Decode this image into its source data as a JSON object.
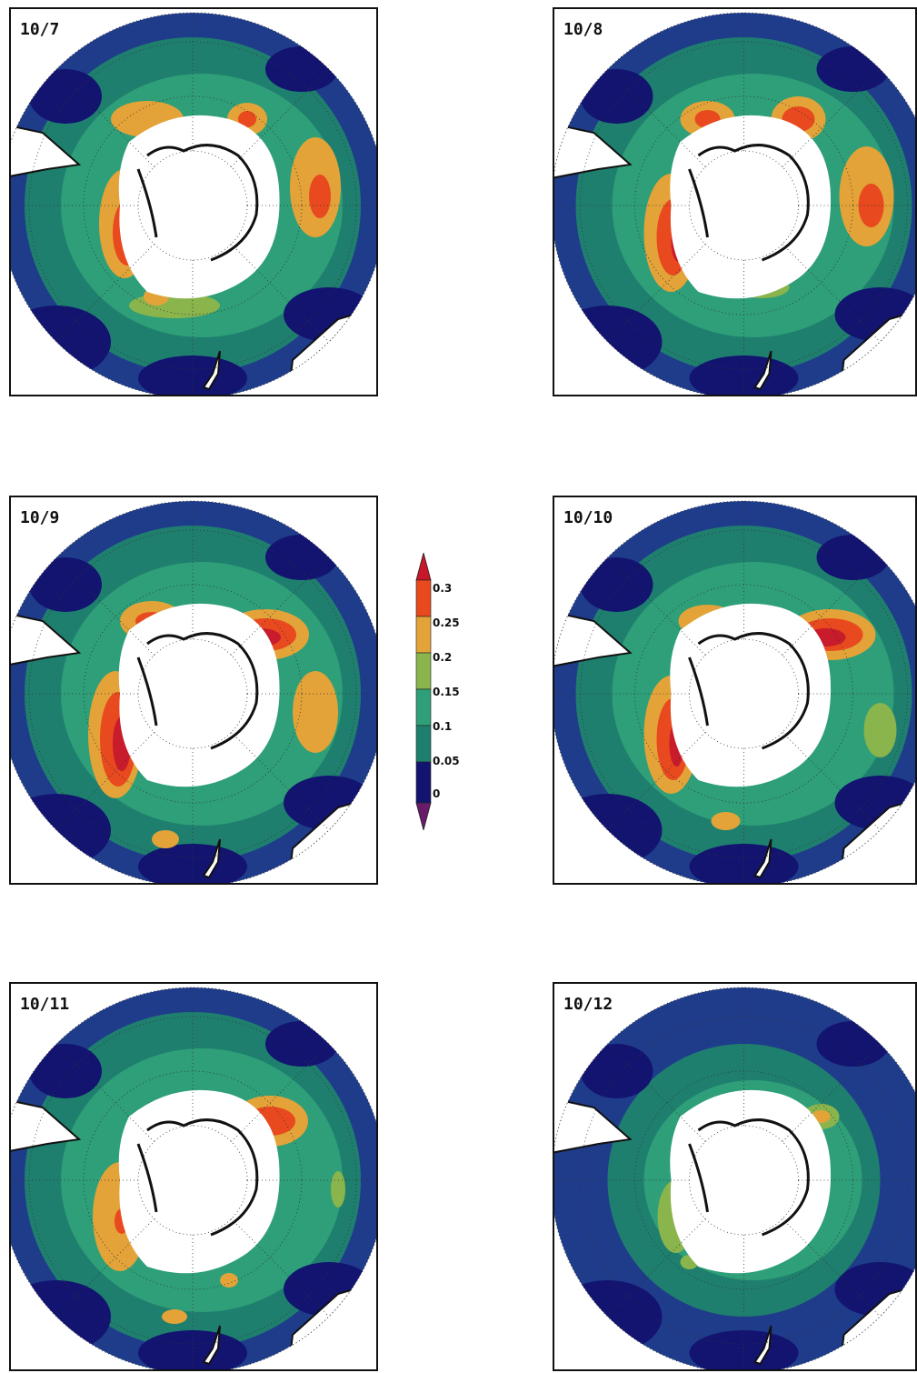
{
  "panels": [
    {
      "label": "10/7"
    },
    {
      "label": "10/8"
    },
    {
      "label": "10/9"
    },
    {
      "label": "10/10"
    },
    {
      "label": "10/11"
    },
    {
      "label": "10/12"
    }
  ],
  "colorbar": {
    "ticks": [
      "0.3",
      "0.25",
      "0.2",
      "0.15",
      "0.1",
      "0.05",
      "0"
    ],
    "colors": [
      "#1a1a7a",
      "#1f7a68",
      "#2a9a7a",
      "#8db24a",
      "#e2a035",
      "#e8541e",
      "#c8162a",
      "#6a1a6a"
    ]
  },
  "colors": {
    "deep": "#121470",
    "blue": "#1f3c8a",
    "teal": "#1f7f6e",
    "green": "#2e9f78",
    "olive": "#8ab44c",
    "orange": "#e3a338",
    "red": "#e8491e",
    "darkred": "#c81b2b",
    "ice": "#ffffff",
    "coast": "#111111"
  }
}
